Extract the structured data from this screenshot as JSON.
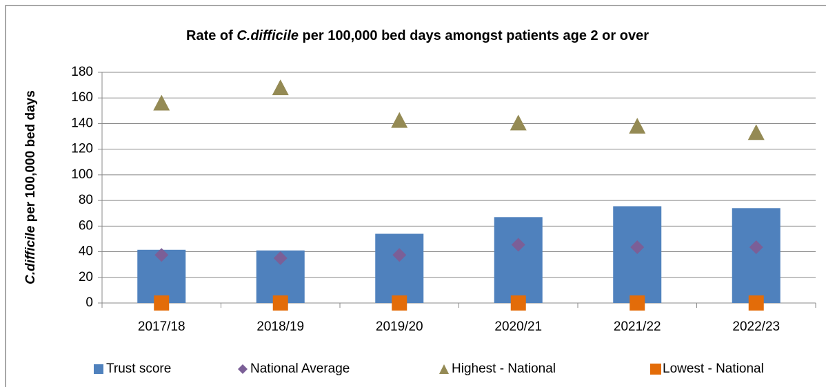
{
  "chart_data": {
    "type": "combo",
    "title": "Rate of C.difficile per 100,000 bed days amongst patients age 2 or over",
    "ylabel": "C.difficile per 100,000 bed days",
    "italic_term": "C.difficile",
    "categories": [
      "2017/18",
      "2018/19",
      "2019/20",
      "2020/21",
      "2021/22",
      "2022/23"
    ],
    "series": [
      {
        "name": "Trust score",
        "color": "#4f81bd",
        "marker": "bar",
        "values": [
          41.5,
          41,
          54,
          67,
          75.5,
          74
        ]
      },
      {
        "name": "National Average",
        "color": "#7b5f97",
        "marker": "diamond",
        "values": [
          37.5,
          35,
          37.5,
          45.5,
          43.5,
          43.5
        ]
      },
      {
        "name": "Highest - National",
        "color": "#948a54",
        "marker": "triangle",
        "values": [
          156,
          168,
          142.5,
          140.5,
          138,
          133
        ]
      },
      {
        "name": "Lowest - National",
        "color": "#e36c09",
        "marker": "square",
        "values": [
          0,
          0,
          0,
          0,
          0,
          0
        ]
      }
    ],
    "ylim": [
      0,
      180
    ],
    "yticks": [
      0,
      20,
      40,
      60,
      80,
      100,
      120,
      140,
      160,
      180
    ],
    "grid": true,
    "legend": "bottom"
  }
}
